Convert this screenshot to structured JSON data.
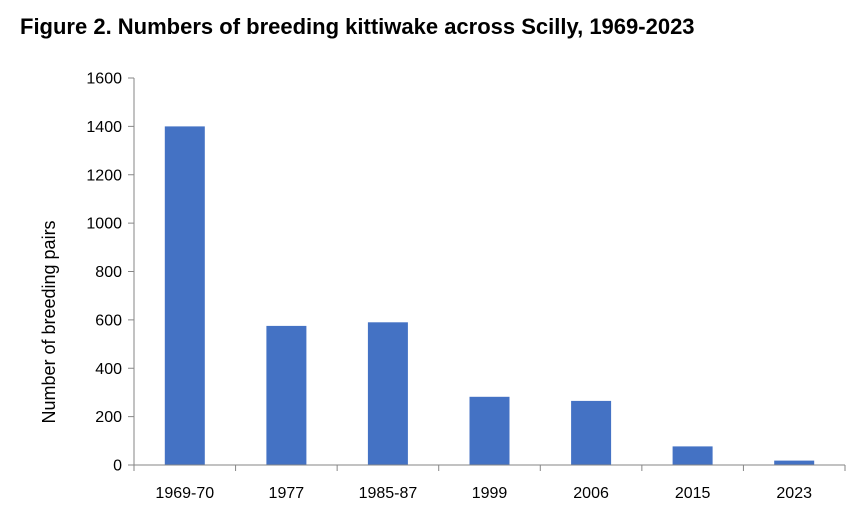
{
  "chart_data": {
    "type": "bar",
    "title": "Figure 2. Numbers of breeding kittiwake across Scilly, 1969-2023",
    "xlabel": "",
    "ylabel": "Number of breeding pairs",
    "categories": [
      "1969-70",
      "1977",
      "1985-87",
      "1999",
      "2006",
      "2015",
      "2023"
    ],
    "values": [
      1400,
      575,
      590,
      282,
      265,
      77,
      18
    ],
    "ylim": [
      0,
      1600
    ],
    "yticks": [
      0,
      200,
      400,
      600,
      800,
      1000,
      1200,
      1400,
      1600
    ],
    "grid": false,
    "legend": "none",
    "bar_color": "#4472C4",
    "axis_color": "#868686"
  }
}
